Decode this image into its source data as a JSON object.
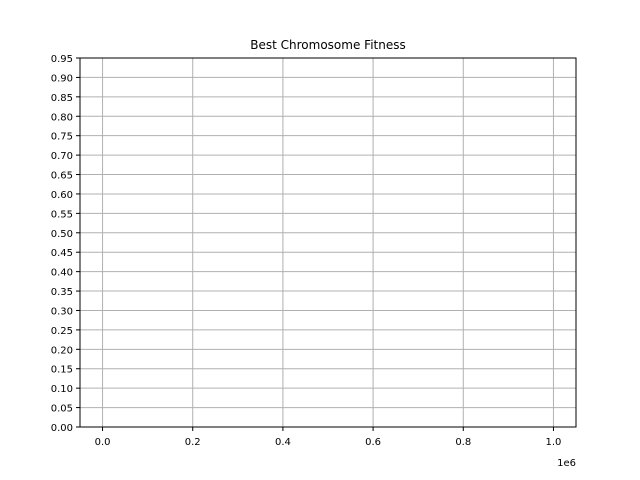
{
  "chart_data": {
    "type": "line",
    "title": "Best Chromosome Fitness",
    "xlabel": "",
    "ylabel": "",
    "x_offset_label": "1e6",
    "xlim": [
      -0.05,
      1.05
    ],
    "ylim": [
      0,
      0.95
    ],
    "x_ticks": [
      0.0,
      0.2,
      0.4,
      0.6,
      0.8,
      1.0
    ],
    "x_tick_labels": [
      "0.0",
      "0.2",
      "0.4",
      "0.6",
      "0.8",
      "1.0"
    ],
    "y_ticks": [
      0.0,
      0.05,
      0.1,
      0.15,
      0.2,
      0.25,
      0.3,
      0.35,
      0.4,
      0.45,
      0.5,
      0.55,
      0.6,
      0.65,
      0.7,
      0.75,
      0.8,
      0.85,
      0.9,
      0.95
    ],
    "y_tick_labels": [
      "0.00",
      "0.05",
      "0.10",
      "0.15",
      "0.20",
      "0.25",
      "0.30",
      "0.35",
      "0.40",
      "0.45",
      "0.50",
      "0.55",
      "0.60",
      "0.65",
      "0.70",
      "0.75",
      "0.80",
      "0.85",
      "0.90",
      "0.95"
    ],
    "grid": true,
    "series": [
      {
        "x": [],
        "y": []
      }
    ],
    "colors": {
      "grid": "#b0b0b0",
      "axes": "#000000",
      "background": "#ffffff"
    }
  }
}
